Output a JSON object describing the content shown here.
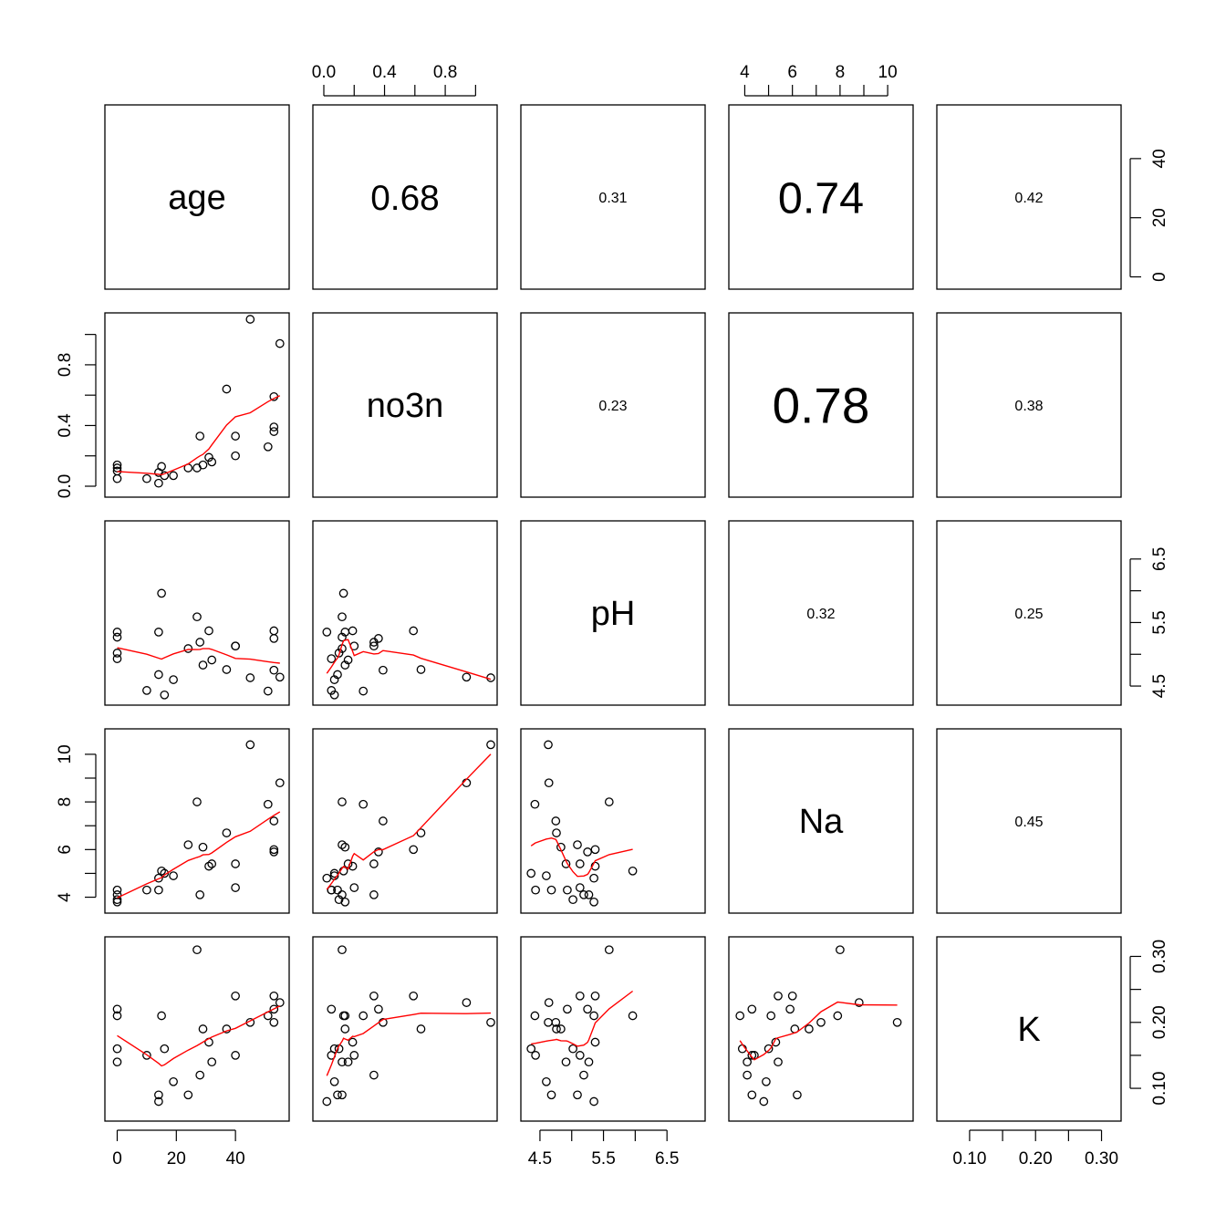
{
  "chart_data": {
    "type": "scatter",
    "title": "",
    "variables": [
      "age",
      "no3n",
      "pH",
      "Na",
      "K"
    ],
    "correlations": [
      {
        "row": 0,
        "col": 1,
        "text": "0.68"
      },
      {
        "row": 0,
        "col": 2,
        "text": "0.31"
      },
      {
        "row": 0,
        "col": 3,
        "text": "0.74"
      },
      {
        "row": 0,
        "col": 4,
        "text": "0.42"
      },
      {
        "row": 1,
        "col": 2,
        "text": "0.23"
      },
      {
        "row": 1,
        "col": 3,
        "text": "0.78"
      },
      {
        "row": 1,
        "col": 4,
        "text": "0.38"
      },
      {
        "row": 2,
        "col": 3,
        "text": "0.32"
      },
      {
        "row": 2,
        "col": 4,
        "text": "0.25"
      },
      {
        "row": 3,
        "col": 4,
        "text": "0.45"
      }
    ],
    "axes": {
      "age": {
        "range": [
          -2,
          56
        ],
        "ticks": [
          0,
          20,
          40
        ],
        "tick_labels": [
          "0",
          "20",
          "40"
        ]
      },
      "no3n": {
        "range": [
          -0.03,
          1.1
        ],
        "ticks": [
          0.0,
          0.2,
          0.4,
          0.6,
          0.8,
          1.0
        ],
        "tick_labels": [
          "0.0",
          "",
          "0.4",
          "",
          "0.8",
          ""
        ]
      },
      "pH": {
        "range": [
          4.3,
          7.0
        ],
        "ticks": [
          4.5,
          5.0,
          5.5,
          6.0,
          6.5
        ],
        "tick_labels": [
          "4.5",
          "",
          "5.5",
          "",
          "6.5"
        ]
      },
      "Na": {
        "range": [
          3.6,
          10.8
        ],
        "ticks": [
          4,
          5,
          6,
          7,
          8,
          9,
          10
        ],
        "tick_labels": [
          "4",
          "",
          "6",
          "",
          "8",
          "",
          "10"
        ]
      },
      "K": {
        "range": [
          0.06,
          0.32
        ],
        "ticks": [
          0.1,
          0.15,
          0.2,
          0.25,
          0.3
        ],
        "tick_labels": [
          "0.10",
          "",
          "0.20",
          "",
          "0.30"
        ]
      }
    },
    "axis_placement": {
      "bottom": [
        "age",
        "pH",
        "K"
      ],
      "top": [
        "no3n",
        "Na"
      ],
      "left": [
        "no3n",
        "Na"
      ],
      "right": [
        "age",
        "pH",
        "K"
      ]
    },
    "smoother_color": "#ff0000",
    "point_color": "#000000",
    "data": {
      "age": [
        0,
        0,
        0,
        0,
        10,
        14,
        14,
        15,
        16,
        19,
        24,
        27,
        28,
        29,
        31,
        32,
        37,
        40,
        40,
        45,
        51,
        53,
        53,
        53,
        55
      ],
      "no3n": [
        0.05,
        0.1,
        0.12,
        0.14,
        0.05,
        0.02,
        0.09,
        0.13,
        0.07,
        0.07,
        0.12,
        0.12,
        0.33,
        0.14,
        0.19,
        0.16,
        0.64,
        0.33,
        0.2,
        1.1,
        0.26,
        0.59,
        0.36,
        0.39,
        0.94
      ],
      "pH": [
        4.93,
        5.02,
        5.27,
        5.35,
        4.43,
        5.35,
        4.68,
        5.96,
        4.36,
        4.6,
        5.09,
        5.59,
        5.19,
        4.83,
        5.37,
        4.91,
        4.76,
        5.13,
        5.13,
        4.63,
        4.42,
        5.37,
        5.25,
        4.75,
        4.64
      ],
      "Na": [
        4.3,
        3.9,
        4.1,
        3.8,
        4.3,
        4.8,
        4.3,
        5.1,
        5.0,
        4.9,
        6.2,
        8.0,
        4.1,
        6.1,
        5.3,
        5.4,
        6.7,
        5.4,
        4.4,
        10.4,
        7.9,
        6.0,
        5.9,
        7.2,
        8.8
      ],
      "K": [
        0.22,
        0.16,
        0.14,
        0.21,
        0.15,
        0.08,
        0.09,
        0.21,
        0.16,
        0.11,
        0.09,
        0.31,
        0.12,
        0.19,
        0.17,
        0.14,
        0.19,
        0.24,
        0.15,
        0.2,
        0.21,
        0.24,
        0.22,
        0.2,
        0.23
      ]
    }
  }
}
